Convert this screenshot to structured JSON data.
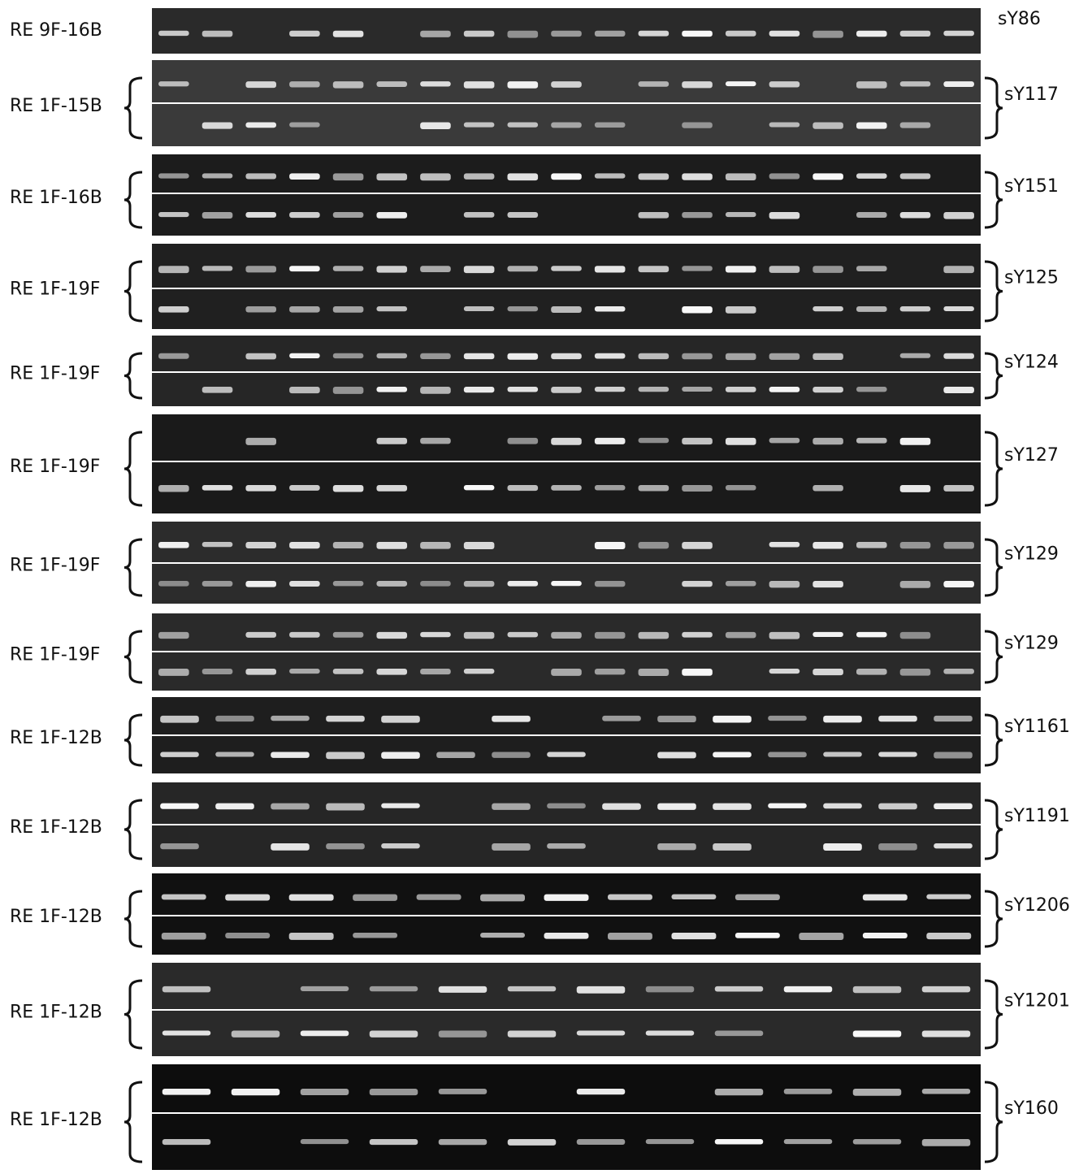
{
  "panels": [
    {
      "left_label": "RE 9F-16B",
      "right_label": "sY86"
    },
    {
      "left_label": "RE 1F-15B",
      "right_label": "sY117"
    },
    {
      "left_label": "RE 1F-16B",
      "right_label": "sY151"
    },
    {
      "left_label": "RE 1F-19F",
      "right_label": "sY125"
    },
    {
      "left_label": "RE 1F-19F",
      "right_label": "sY124"
    },
    {
      "left_label": "RE 1F-19F",
      "right_label": "sY127"
    },
    {
      "left_label": "RE 1F-19F",
      "right_label": "sY129"
    },
    {
      "left_label": "RE 1F-19F",
      "right_label": "sY129"
    },
    {
      "left_label": "RE 1F-12B",
      "right_label": "sY1161"
    },
    {
      "left_label": "RE 1F-12B",
      "right_label": "sY1191"
    },
    {
      "left_label": "RE 1F-12B",
      "right_label": "sY1206"
    },
    {
      "left_label": "RE 1F-12B",
      "right_label": "sY1201"
    },
    {
      "left_label": "RE 1F-12B",
      "right_label": "sY160"
    }
  ]
}
